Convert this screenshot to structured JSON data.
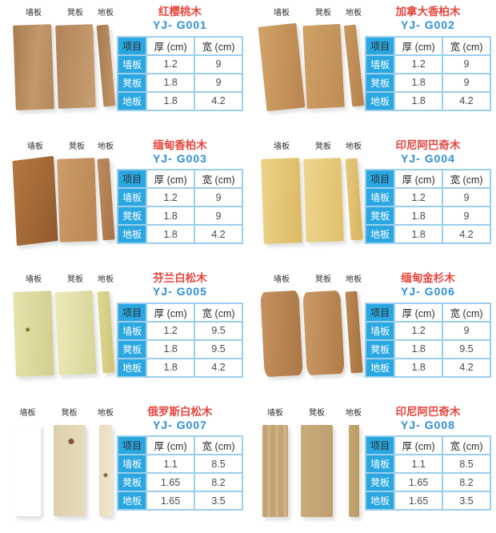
{
  "page": {
    "background": "#ffffff"
  },
  "colors": {
    "product_name_red": "#e8453c",
    "product_code_blue": "#2f8fd6",
    "table_key_cyan": "#2aa7e1",
    "table_border_blue": "#9ccfee",
    "cell_text_gray": "#4a4a4a",
    "plank_label_text": "#333333"
  },
  "plank_labels": [
    "墙板",
    "凳板",
    "地板"
  ],
  "table_headers": {
    "item": "项目",
    "thickness": "厚 (cm)",
    "width": "宽 (cm)"
  },
  "products": [
    {
      "name": "红樱桃木",
      "code": "YJ- G001",
      "rows": [
        {
          "label": "墙板",
          "thickness": "1.2",
          "width": "9"
        },
        {
          "label": "凳板",
          "thickness": "1.8",
          "width": "9"
        },
        {
          "label": "地板",
          "thickness": "1.8",
          "width": "4.2"
        }
      ]
    },
    {
      "name": "加拿大香柏木",
      "code": "YJ- G002",
      "rows": [
        {
          "label": "墙板",
          "thickness": "1.2",
          "width": "9"
        },
        {
          "label": "凳板",
          "thickness": "1.8",
          "width": "9"
        },
        {
          "label": "地板",
          "thickness": "1.8",
          "width": "4.2"
        }
      ]
    },
    {
      "name": "缅甸香柏木",
      "code": "YJ- G003",
      "rows": [
        {
          "label": "墙板",
          "thickness": "1.2",
          "width": "9"
        },
        {
          "label": "凳板",
          "thickness": "1.8",
          "width": "9"
        },
        {
          "label": "地板",
          "thickness": "1.8",
          "width": "4.2"
        }
      ]
    },
    {
      "name": "印尼阿巴奇木",
      "code": "YJ- G004",
      "rows": [
        {
          "label": "墙板",
          "thickness": "1.2",
          "width": "9"
        },
        {
          "label": "凳板",
          "thickness": "1.8",
          "width": "9"
        },
        {
          "label": "地板",
          "thickness": "1.8",
          "width": "4.2"
        }
      ]
    },
    {
      "name": "芬兰白松木",
      "code": "YJ- G005",
      "rows": [
        {
          "label": "墙板",
          "thickness": "1.2",
          "width": "9.5"
        },
        {
          "label": "凳板",
          "thickness": "1.8",
          "width": "9.5"
        },
        {
          "label": "地板",
          "thickness": "1.8",
          "width": "4.2"
        }
      ]
    },
    {
      "name": "缅甸金杉木",
      "code": "YJ- G006",
      "rows": [
        {
          "label": "墙板",
          "thickness": "1.2",
          "width": "9"
        },
        {
          "label": "凳板",
          "thickness": "1.8",
          "width": "9.5"
        },
        {
          "label": "地板",
          "thickness": "1.8",
          "width": "4.2"
        }
      ]
    },
    {
      "name": "俄罗斯白松木",
      "code": "YJ- G007",
      "rows": [
        {
          "label": "墙板",
          "thickness": "1.1",
          "width": "8.5"
        },
        {
          "label": "凳板",
          "thickness": "1.65",
          "width": "8.2"
        },
        {
          "label": "地板",
          "thickness": "1.65",
          "width": "3.5"
        }
      ]
    },
    {
      "name": "印尼阿巴奇木",
      "code": "YJ- G008",
      "rows": [
        {
          "label": "墙板",
          "thickness": "1.1",
          "width": "8.5"
        },
        {
          "label": "凳板",
          "thickness": "1.65",
          "width": "8.2"
        },
        {
          "label": "地板",
          "thickness": "1.65",
          "width": "3.5"
        }
      ]
    }
  ]
}
